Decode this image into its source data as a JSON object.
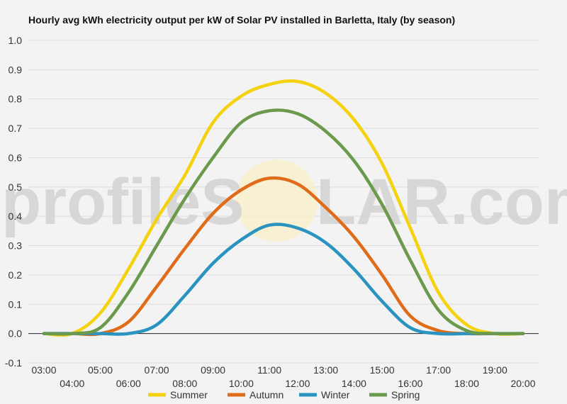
{
  "chart_data": {
    "type": "line",
    "title": "Hourly avg kWh electricity output per kW of Solar PV installed in Barletta, Italy (by season)",
    "xlabel": "",
    "ylabel": "",
    "ylim": [
      -0.1,
      1.0
    ],
    "y_ticks": [
      "1.0",
      "0.9",
      "0.8",
      "0.7",
      "0.6",
      "0.5",
      "0.4",
      "0.3",
      "0.2",
      "0.1",
      "0.0",
      "-0.1"
    ],
    "x_ticks": [
      "03:00",
      "04:00",
      "05:00",
      "06:00",
      "07:00",
      "08:00",
      "09:00",
      "10:00",
      "11:00",
      "12:00",
      "13:00",
      "14:00",
      "15:00",
      "16:00",
      "17:00",
      "18:00",
      "19:00",
      "20:00"
    ],
    "grid": true,
    "legend_position": "bottom",
    "series": [
      {
        "name": "Summer",
        "color": "#f5d20f",
        "values": [
          0.0,
          0.0,
          0.07,
          0.22,
          0.39,
          0.54,
          0.72,
          0.81,
          0.85,
          0.86,
          0.82,
          0.73,
          0.58,
          0.36,
          0.14,
          0.03,
          0.0,
          0.0
        ]
      },
      {
        "name": "Autumn",
        "color": "#e06c1a",
        "values": [
          0.0,
          0.0,
          0.0,
          0.04,
          0.16,
          0.29,
          0.41,
          0.49,
          0.53,
          0.51,
          0.43,
          0.33,
          0.2,
          0.06,
          0.01,
          0.0,
          0.0,
          0.0
        ]
      },
      {
        "name": "Winter",
        "color": "#2a93c0",
        "values": [
          0.0,
          0.0,
          0.0,
          0.0,
          0.03,
          0.13,
          0.24,
          0.32,
          0.37,
          0.36,
          0.31,
          0.22,
          0.11,
          0.02,
          0.0,
          0.0,
          0.0,
          0.0
        ]
      },
      {
        "name": "Spring",
        "color": "#6c9a4d",
        "values": [
          0.0,
          0.0,
          0.02,
          0.14,
          0.3,
          0.46,
          0.6,
          0.72,
          0.76,
          0.75,
          0.69,
          0.59,
          0.44,
          0.25,
          0.08,
          0.01,
          0.0,
          0.0
        ]
      }
    ]
  }
}
